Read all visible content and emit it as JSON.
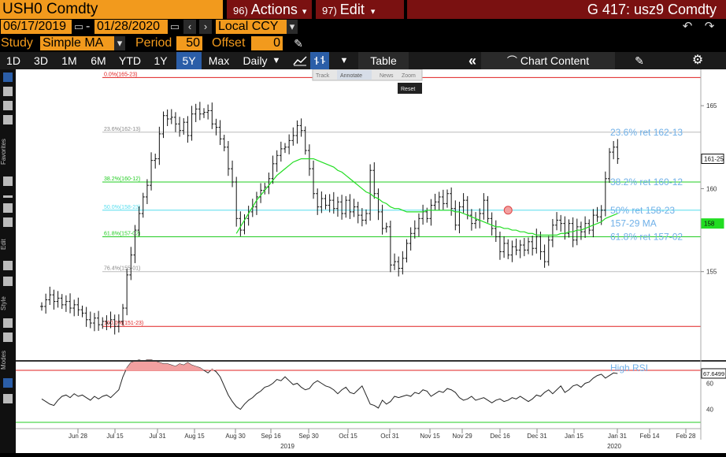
{
  "header": {
    "ticker": "USH0 Comdty",
    "actions_num": "96)",
    "actions_label": "Actions",
    "edit_num": "97)",
    "edit_label": "Edit",
    "title": "G 417: usz9 Comdty"
  },
  "settings": {
    "start_date": "06/17/2019",
    "end_date": "01/28/2020",
    "currency": "Local CCY",
    "study_label": "Study",
    "study_value": "Simple MA",
    "period_label": "Period",
    "period_value": "50",
    "offset_label": "Offset",
    "offset_value": "0"
  },
  "toolbar": {
    "periods": [
      "1D",
      "3D",
      "1M",
      "6M",
      "YTD",
      "1Y",
      "5Y",
      "Max"
    ],
    "active_period": "5Y",
    "frequency": "Daily",
    "table_label": "Table",
    "chart_content_label": "Chart Content"
  },
  "overlay_tools": {
    "track": "Track",
    "annotate": "Annotate",
    "news": "News",
    "zoom": "Zoom",
    "reset": "Reset"
  },
  "side_labels": {
    "favorites": "Favorites",
    "edit": "Edit",
    "style": "Style",
    "modes": "Modes"
  },
  "colors": {
    "orange": "#f29a1d",
    "dark_red": "#7a1111",
    "active_blue": "#2b5ea8",
    "fib_red": "#e02020",
    "fib_green": "#22cc22",
    "fib_cyan": "#55ddee",
    "fib_gray": "#bbbbbb",
    "ma_green": "#22dd22",
    "annotation_blue": "#6fb0e8",
    "price_tag": "#22dd22"
  },
  "chart_data": {
    "type": "bar",
    "ylim": [
      150,
      167
    ],
    "y_ticks": [
      "165",
      "160",
      "155"
    ],
    "rsi_ticks": [
      "60",
      "40"
    ],
    "x_ticks": [
      "Jun 28",
      "Jul 15",
      "Jul 31",
      "Aug 15",
      "Aug 30",
      "Sep 16",
      "Sep 30",
      "Oct 15",
      "Oct 31",
      "Nov 15",
      "Nov 29",
      "Dec 16",
      "Dec 31",
      "Jan 15",
      "Jan 31",
      "Feb 14",
      "Feb 28"
    ],
    "year_labels": [
      "2019",
      "2020"
    ],
    "fib_levels": [
      {
        "label": "0.0%(165-23)",
        "value": 166.7
      },
      {
        "label": "23.6%(162-13)",
        "value": 163.4
      },
      {
        "label": "38.2%(160-12)",
        "value": 160.4
      },
      {
        "label": "50.0%(158-23)",
        "value": 158.7
      },
      {
        "label": "61.8%(157-02)",
        "value": 157.1
      },
      {
        "label": "76.4%(155-01)",
        "value": 155.0
      },
      {
        "label": "100.0%(151-23)",
        "value": 151.7
      }
    ],
    "annotations": [
      "23.6% ret 162-13",
      "38.2% ret 160-12",
      "50% ret 158-23",
      "157-29 MA",
      "61.8% ret 157-02",
      "High RSI"
    ],
    "last_price_label": "161-25",
    "ma_value_label": "158",
    "rsi_value_label": "67.6499",
    "price_closes": [
      152.9,
      153.3,
      153.6,
      153.2,
      153.4,
      153.0,
      153.2,
      152.8,
      153.0,
      152.7,
      152.5,
      152.1,
      151.9,
      152.2,
      151.8,
      152.0,
      151.9,
      152.1,
      151.7,
      152.0,
      152.8,
      154.8,
      156.0,
      157.5,
      158.5,
      159.5,
      160.2,
      161.7,
      161.8,
      163.3,
      164.4,
      164.2,
      164.3,
      163.9,
      163.5,
      164.0,
      163.2,
      164.5,
      164.8,
      164.5,
      164.6,
      164.7,
      163.9,
      163.7,
      163.0,
      162.5,
      161.2,
      160.4,
      158.2,
      157.5,
      158.2,
      158.6,
      158.9,
      159.5,
      159.9,
      160.1,
      160.6,
      161.5,
      162.0,
      162.4,
      162.5,
      162.9,
      163.2,
      163.8,
      163.5,
      162.3,
      161.2,
      159.7,
      158.9,
      159.4,
      159.0,
      159.3,
      158.8,
      159.2,
      158.5,
      159.3,
      158.6,
      158.9,
      158.4,
      158.1,
      158.5,
      161.1,
      159.7,
      158.6,
      157.6,
      157.7,
      155.4,
      155.6,
      155.2,
      155.8,
      156.7,
      157.3,
      157.6,
      158.2,
      158.6,
      158.2,
      159.0,
      159.2,
      159.5,
      159.1,
      159.7,
      158.8,
      157.8,
      158.9,
      159.3,
      158.4,
      157.9,
      158.1,
      158.5,
      159.3,
      158.2,
      157.6,
      157.1,
      156.2,
      156.7,
      156.0,
      156.5,
      156.3,
      156.6,
      156.3,
      156.8,
      156.4,
      157.1,
      156.2,
      155.6,
      156.9,
      157.8,
      158.1,
      157.9,
      157.3,
      157.9,
      156.9,
      157.7,
      157.4,
      157.9,
      157.5,
      158.4,
      158.3,
      158.7,
      160.6,
      162.2,
      162.5,
      161.8
    ],
    "ma_values": [
      null,
      null,
      null,
      null,
      null,
      null,
      null,
      null,
      null,
      null,
      null,
      null,
      null,
      null,
      null,
      null,
      null,
      null,
      null,
      null,
      null,
      null,
      null,
      null,
      null,
      null,
      null,
      null,
      null,
      null,
      null,
      null,
      null,
      null,
      null,
      null,
      null,
      null,
      null,
      null,
      null,
      null,
      null,
      null,
      null,
      null,
      null,
      null,
      157.3,
      157.7,
      158.1,
      158.5,
      158.9,
      159.3,
      159.6,
      159.9,
      160.2,
      160.5,
      160.8,
      161.0,
      161.2,
      161.4,
      161.6,
      161.7,
      161.8,
      161.8,
      161.8,
      161.8,
      161.7,
      161.6,
      161.5,
      161.4,
      161.3,
      161.1,
      161.0,
      160.8,
      160.6,
      160.4,
      160.2,
      160.0,
      159.8,
      159.7,
      159.5,
      159.4,
      159.2,
      159.1,
      158.9,
      158.8,
      158.8,
      158.7,
      158.6,
      158.6,
      158.6,
      158.6,
      158.6,
      158.7,
      158.7,
      158.7,
      158.7,
      158.7,
      158.7,
      158.7,
      158.6,
      158.6,
      158.5,
      158.4,
      158.3,
      158.2,
      158.1,
      158.0,
      157.9,
      157.8,
      157.7,
      157.7,
      157.6,
      157.6,
      157.5,
      157.5,
      157.4,
      157.4,
      157.3,
      157.3,
      157.2,
      157.2,
      157.2,
      157.2,
      157.2,
      157.2,
      157.3,
      157.3,
      157.4,
      157.4,
      157.5,
      157.5,
      157.6,
      157.7,
      157.8,
      157.9,
      158.0,
      158.2,
      158.3,
      158.4,
      158.5
    ],
    "rsi_values": [
      48,
      46,
      44,
      43,
      47,
      50,
      51,
      49,
      52,
      50,
      51,
      49,
      47,
      50,
      48,
      50,
      51,
      49,
      52,
      55,
      65,
      72,
      76,
      77,
      78,
      77,
      78,
      78,
      77,
      76,
      75,
      75,
      74,
      73,
      75,
      74,
      76,
      74,
      73,
      72,
      70,
      68,
      71,
      69,
      65,
      58,
      51,
      46,
      42,
      40,
      44,
      47,
      49,
      52,
      54,
      57,
      58,
      60,
      63,
      62,
      65,
      62,
      59,
      60,
      57,
      55,
      56,
      60,
      62,
      60,
      58,
      57,
      55,
      52,
      55,
      57,
      53,
      52,
      55,
      58,
      51,
      44,
      43,
      41,
      47,
      44,
      46,
      50,
      49,
      50,
      51,
      50,
      53,
      52,
      55,
      54,
      50,
      52,
      54,
      53,
      56,
      55,
      53,
      49,
      47,
      48,
      50,
      47,
      48,
      49,
      47,
      45,
      47,
      48,
      46,
      47,
      49,
      48,
      50,
      48,
      46,
      48,
      51,
      50,
      53,
      55,
      52,
      55,
      58,
      53,
      55,
      58,
      59,
      57,
      60,
      61,
      64,
      66,
      67,
      64,
      66,
      68,
      67.6
    ]
  }
}
